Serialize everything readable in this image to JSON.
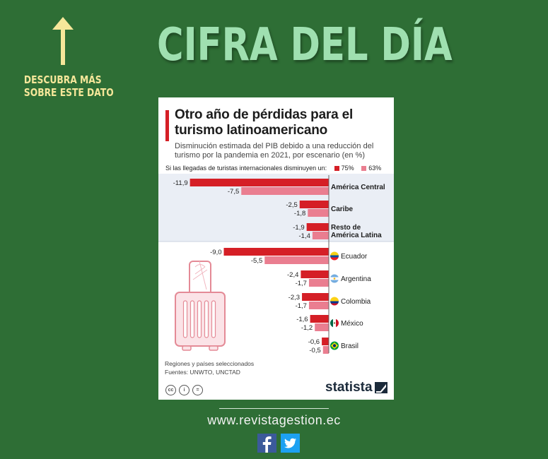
{
  "headline": "CIFRA DEL DÍA",
  "side_note": {
    "line1": "DESCUBRA MÁS",
    "line2": "SOBRE ESTE DATO"
  },
  "card": {
    "title_line1": "Otro año de pérdidas para el",
    "title_line2": "turismo latinoamericano",
    "subtitle_line1": "Disminución estimada del PIB debido a una reducción del",
    "subtitle_line2": "turismo por la pandemia en 2021, por escenario (en %)",
    "legend_prefix": "Si las llegadas de turistas internacionales disminuyen un:",
    "notes_line1": "Regiones y países seleccionados",
    "notes_line2": "Fuentes: UNWTO, UNCTAD",
    "brand": "statista",
    "cc_icons": [
      "cc-icon",
      "by-icon",
      "equals-icon"
    ]
  },
  "chart_data": {
    "type": "bar",
    "orientation": "horizontal",
    "title": "Otro año de pérdidas para el turismo latinoamericano",
    "subtitle": "Disminución estimada del PIB debido a una reducción del turismo por la pandemia en 2021, por escenario (en %)",
    "categories": [
      {
        "label_lines": [
          "América Central"
        ],
        "group": "region"
      },
      {
        "label_lines": [
          "Caribe"
        ],
        "group": "region"
      },
      {
        "label_lines": [
          "Resto de",
          "América Latina"
        ],
        "group": "region"
      },
      {
        "label_lines": [
          "Ecuador"
        ],
        "group": "country",
        "flag": "ecuador"
      },
      {
        "label_lines": [
          "Argentina"
        ],
        "group": "country",
        "flag": "argentina"
      },
      {
        "label_lines": [
          "Colombia"
        ],
        "group": "country",
        "flag": "colombia"
      },
      {
        "label_lines": [
          "México"
        ],
        "group": "country",
        "flag": "mexico"
      },
      {
        "label_lines": [
          "Brasil"
        ],
        "group": "country",
        "flag": "brazil"
      }
    ],
    "series": [
      {
        "name": "75%",
        "color": "#d51f26",
        "values": [
          -11.9,
          -2.5,
          -1.9,
          -9.0,
          -2.4,
          -2.3,
          -1.6,
          -0.6
        ],
        "labels": [
          "-11,9",
          "-2,5",
          "-1,9",
          "-9,0",
          "-2,4",
          "-2,3",
          "-1,6",
          "-0,6"
        ]
      },
      {
        "name": "63%",
        "color": "#ea7e90",
        "values": [
          -7.5,
          -1.8,
          -1.4,
          -5.5,
          -1.7,
          -1.7,
          -1.2,
          -0.5
        ],
        "labels": [
          "-7,5",
          "-1,8",
          "-1,4",
          "-5,5",
          "-1,7",
          "-1,7",
          "-1,2",
          "-0,5"
        ]
      }
    ],
    "region_band_color": "#eaeef5",
    "legend_position": "top"
  },
  "footer": {
    "site": "www.revistagestion.ec",
    "social": [
      "facebook-icon",
      "twitter-icon"
    ]
  },
  "colors": {
    "background": "#2e6e35",
    "headline": "#9fe0b0",
    "side_note": "#f6e79a",
    "accent": "#d51f26"
  }
}
